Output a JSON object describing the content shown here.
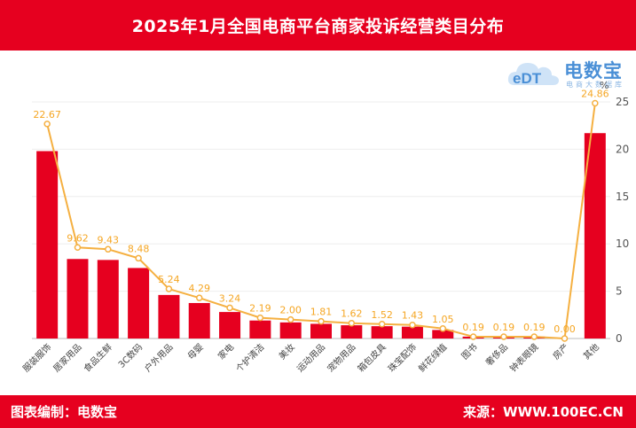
{
  "header": {
    "title": "2025年1月全国电商平台商家投诉经营类目分布"
  },
  "footer": {
    "left": "图表编制：电数宝",
    "right": "来源：WWW.100EC.CN"
  },
  "logo": {
    "mark": "eDT",
    "name": "电数宝",
    "sub": "电商大数据库",
    "icon": "cloud-logo-icon"
  },
  "colors": {
    "bar": "#e6001f",
    "line": "#f5b041",
    "header": "#e6001f"
  },
  "chart_data": {
    "type": "bar",
    "title": "2025年1月全国电商平台商家投诉经营类目分布",
    "categories": [
      "服装服饰",
      "居家用品",
      "食品生鲜",
      "3C数码",
      "户外用品",
      "母婴",
      "家电",
      "个护清洁",
      "美妆",
      "运动用品",
      "宠物用品",
      "箱包皮具",
      "珠宝配饰",
      "鲜花绿植",
      "图书",
      "奢侈品",
      "钟表眼镜",
      "房产",
      "其他"
    ],
    "series": [
      {
        "chart": "bar",
        "values": [
          19.8,
          8.4,
          8.3,
          7.45,
          4.6,
          3.75,
          2.8,
          1.9,
          1.7,
          1.55,
          1.4,
          1.3,
          1.25,
          0.9,
          0.2,
          0.2,
          0.2,
          0.0,
          21.7
        ]
      },
      {
        "chart": "line",
        "values": [
          22.67,
          9.62,
          9.43,
          8.48,
          5.24,
          4.29,
          3.24,
          2.19,
          2.0,
          1.81,
          1.62,
          1.52,
          1.43,
          1.05,
          0.19,
          0.19,
          0.19,
          0.0,
          24.86
        ],
        "labels": [
          "22.67",
          "9.62",
          "9.43",
          "8.48",
          "5.24",
          "4.29",
          "3.24",
          "2.19",
          "2.00",
          "1.81",
          "1.62",
          "1.52",
          "1.43",
          "1.05",
          "0.19",
          "0.19",
          "0.19",
          "0.00",
          "24.86"
        ]
      }
    ],
    "y_axis": {
      "position": "right",
      "label": "%",
      "ylim": [
        0,
        25
      ],
      "ticks": [
        "0",
        "5",
        "10",
        "15",
        "20",
        "25"
      ]
    },
    "grid": true
  }
}
